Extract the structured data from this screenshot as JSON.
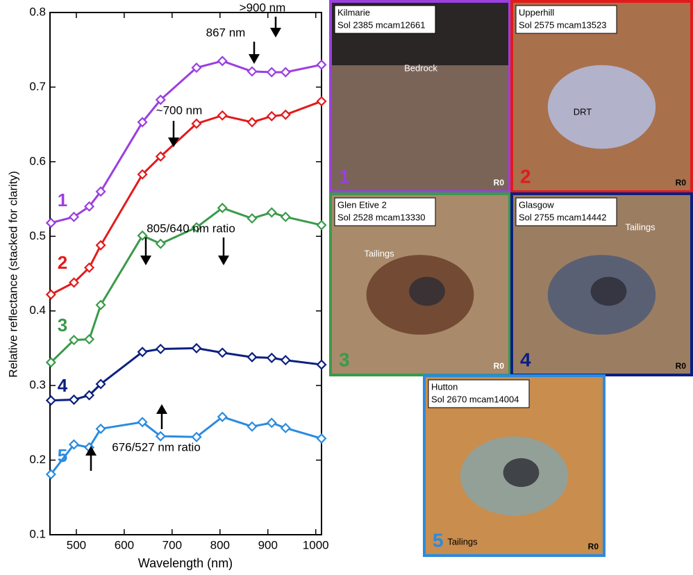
{
  "chart_data": {
    "type": "line",
    "x_label": "Wavelength (nm)",
    "y_label": "Relative reflectance (stacked for clarity)",
    "x": [
      447,
      495,
      527,
      551,
      638,
      676,
      751,
      805,
      867,
      908,
      937,
      1012
    ],
    "series": [
      {
        "name": "1",
        "color": "#9b3fe0",
        "values": [
          0.518,
          0.526,
          0.54,
          0.56,
          0.653,
          0.683,
          0.726,
          0.735,
          0.721,
          0.72,
          0.72,
          0.73
        ]
      },
      {
        "name": "2",
        "color": "#e31a1c",
        "values": [
          0.422,
          0.438,
          0.458,
          0.488,
          0.583,
          0.607,
          0.651,
          0.662,
          0.653,
          0.661,
          0.663,
          0.681
        ]
      },
      {
        "name": "3",
        "color": "#3a9a4a",
        "values": [
          0.331,
          0.361,
          0.362,
          0.408,
          0.501,
          0.49,
          0.512,
          0.538,
          0.524,
          0.532,
          0.526,
          0.515
        ]
      },
      {
        "name": "4",
        "color": "#0b1f80",
        "values": [
          0.28,
          0.281,
          0.287,
          0.302,
          0.345,
          0.349,
          0.35,
          0.344,
          0.338,
          0.337,
          0.334,
          0.328
        ]
      },
      {
        "name": "5",
        "color": "#2a8be0",
        "values": [
          0.181,
          0.221,
          0.217,
          0.242,
          0.251,
          0.232,
          0.231,
          0.258,
          0.245,
          0.25,
          0.243,
          0.229
        ]
      }
    ],
    "xlim": [
      445,
      1012
    ],
    "xticks": [
      500,
      600,
      700,
      800,
      900,
      1000
    ],
    "ylim": [
      0.1,
      0.8
    ],
    "yticks": [
      0.1,
      0.2,
      0.3,
      0.4,
      0.5,
      0.6,
      0.7,
      0.8
    ],
    "annotations": [
      ">900 nm",
      "867 nm",
      "~700 nm",
      "805/640 nm ratio",
      "676/527 nm ratio"
    ]
  },
  "panels": [
    {
      "name": "Kilmarie",
      "sol": "Sol 2385 mcam12661",
      "callout": "Bedrock",
      "number": "1",
      "badge": "R0",
      "color": "#9b3fe0"
    },
    {
      "name": "Upperhill",
      "sol": "Sol 2575 mcam13523",
      "callout": "DRT",
      "number": "2",
      "badge": "R0",
      "color": "#e31a1c"
    },
    {
      "name": "Glen Etive 2",
      "sol": "Sol 2528 mcam13330",
      "callout": "Tailings",
      "number": "3",
      "badge": "R0",
      "color": "#3a9a4a"
    },
    {
      "name": "Glasgow",
      "sol": "Sol 2755 mcam14442",
      "callout": "Tailings",
      "number": "4",
      "badge": "R0",
      "color": "#0b1f80"
    },
    {
      "name": "Hutton",
      "sol": "Sol 2670 mcam14004",
      "callout": "Tailings",
      "number": "5",
      "badge": "R0",
      "color": "#2a8be0"
    }
  ]
}
